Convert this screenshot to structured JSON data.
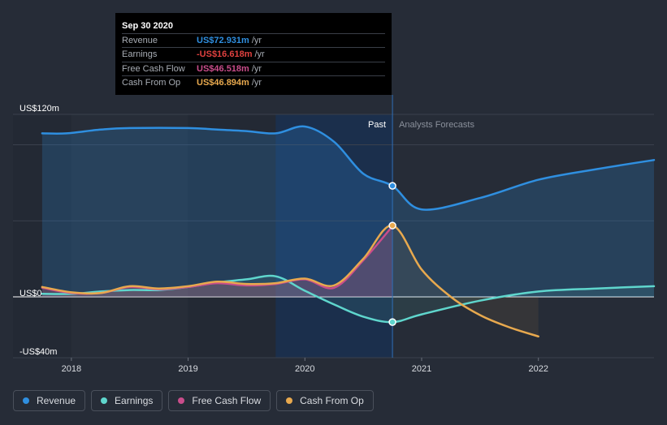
{
  "tooltip": {
    "date": "Sep 30 2020",
    "rows": [
      {
        "label": "Revenue",
        "value": "US$72.931m",
        "unit": "/yr",
        "color": "#2f8fe0"
      },
      {
        "label": "Earnings",
        "value": "-US$16.618m",
        "unit": "/yr",
        "color": "#e0413f"
      },
      {
        "label": "Free Cash Flow",
        "value": "US$46.518m",
        "unit": "/yr",
        "color": "#c94d8b"
      },
      {
        "label": "Cash From Op",
        "value": "US$46.894m",
        "unit": "/yr",
        "color": "#e8a94e"
      }
    ]
  },
  "legend": [
    {
      "label": "Revenue",
      "color": "#2f8fe0"
    },
    {
      "label": "Earnings",
      "color": "#5fd6cd"
    },
    {
      "label": "Free Cash Flow",
      "color": "#c94d8b"
    },
    {
      "label": "Cash From Op",
      "color": "#e8a94e"
    }
  ],
  "chart_data": {
    "type": "line",
    "y_axis_labels": [
      {
        "label": "US$120m",
        "value": 120
      },
      {
        "label": "US$0",
        "value": 0
      },
      {
        "label": "-US$40m",
        "value": -40
      }
    ],
    "x_axis_labels": [
      {
        "label": "2018",
        "value": 2018.0
      },
      {
        "label": "2019",
        "value": 2019.0
      },
      {
        "label": "2020",
        "value": 2020.0
      },
      {
        "label": "2021",
        "value": 2021.0
      },
      {
        "label": "2022",
        "value": 2022.0
      }
    ],
    "ylim": [
      -40,
      120
    ],
    "xlim": [
      2017.5,
      2022.99
    ],
    "past_label": "Past",
    "forecast_label": "Analysts Forecasts",
    "divider_x": 2020.75,
    "highlight_start": 2019.75,
    "colors": {
      "revenue": "#2f8fe0",
      "earnings": "#5fd6cd",
      "fcf": "#c94d8b",
      "cfo": "#e8a94e"
    },
    "series": [
      {
        "name": "Revenue",
        "key": "revenue",
        "values": [
          [
            2017.75,
            107.5
          ],
          [
            2017.96,
            107.5
          ],
          [
            2018.25,
            110
          ],
          [
            2018.5,
            111
          ],
          [
            2019.0,
            111
          ],
          [
            2019.25,
            110
          ],
          [
            2019.5,
            109
          ],
          [
            2019.75,
            107.5
          ],
          [
            2020.0,
            112
          ],
          [
            2020.25,
            102
          ],
          [
            2020.5,
            81
          ],
          [
            2020.75,
            73
          ],
          [
            2021.0,
            57.5
          ],
          [
            2021.5,
            65
          ],
          [
            2022.0,
            77
          ],
          [
            2022.5,
            84
          ],
          [
            2022.99,
            90
          ]
        ]
      },
      {
        "name": "Earnings",
        "key": "earnings",
        "values": [
          [
            2017.75,
            2
          ],
          [
            2018.0,
            2
          ],
          [
            2018.25,
            3.5
          ],
          [
            2018.5,
            4.5
          ],
          [
            2018.75,
            4.5
          ],
          [
            2019.0,
            6.5
          ],
          [
            2019.25,
            9.5
          ],
          [
            2019.5,
            11.5
          ],
          [
            2019.75,
            13.5
          ],
          [
            2020.0,
            4
          ],
          [
            2020.25,
            -5
          ],
          [
            2020.5,
            -13
          ],
          [
            2020.75,
            -16.6
          ],
          [
            2021.0,
            -11.5
          ],
          [
            2021.5,
            -2.5
          ],
          [
            2022.0,
            3.5
          ],
          [
            2022.5,
            5.5
          ],
          [
            2022.99,
            7
          ]
        ]
      },
      {
        "name": "Free Cash Flow",
        "key": "fcf",
        "values": [
          [
            2017.75,
            6
          ],
          [
            2018.0,
            2.5
          ],
          [
            2018.25,
            2.5
          ],
          [
            2018.5,
            6.5
          ],
          [
            2018.75,
            5
          ],
          [
            2019.0,
            6.5
          ],
          [
            2019.25,
            9
          ],
          [
            2019.5,
            7.5
          ],
          [
            2019.75,
            8.5
          ],
          [
            2020.0,
            11.5
          ],
          [
            2020.25,
            6
          ],
          [
            2020.5,
            24
          ],
          [
            2020.75,
            46.5
          ]
        ]
      },
      {
        "name": "Cash From Op",
        "key": "cfo",
        "values": [
          [
            2017.75,
            6.5
          ],
          [
            2018.0,
            3
          ],
          [
            2018.25,
            2.5
          ],
          [
            2018.5,
            7
          ],
          [
            2018.75,
            5.5
          ],
          [
            2019.0,
            7
          ],
          [
            2019.25,
            10
          ],
          [
            2019.5,
            8.5
          ],
          [
            2019.75,
            9
          ],
          [
            2020.0,
            12
          ],
          [
            2020.25,
            7.5
          ],
          [
            2020.5,
            25
          ],
          [
            2020.75,
            46.9
          ],
          [
            2021.0,
            18
          ],
          [
            2021.25,
            0
          ],
          [
            2021.5,
            -12
          ],
          [
            2021.75,
            -20
          ],
          [
            2022.0,
            -26
          ]
        ]
      }
    ]
  }
}
